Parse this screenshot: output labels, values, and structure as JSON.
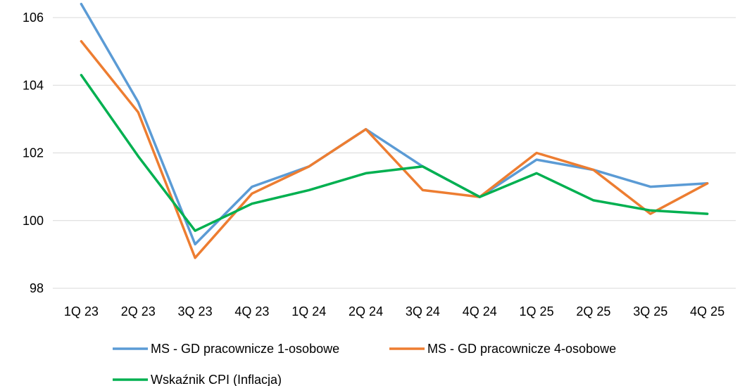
{
  "chart_data": {
    "type": "line",
    "title": "",
    "xlabel": "",
    "ylabel": "",
    "categories": [
      "1Q 23",
      "2Q 23",
      "3Q 23",
      "4Q 23",
      "1Q 24",
      "2Q 24",
      "3Q 24",
      "4Q 24",
      "1Q 25",
      "2Q 25",
      "3Q 25",
      "4Q 25"
    ],
    "ylim": [
      98,
      106
    ],
    "yticks": [
      98,
      100,
      102,
      104,
      106
    ],
    "grid": true,
    "legend_position": "bottom",
    "series": [
      {
        "name": "MS - GD pracownicze 1-osobowe",
        "color": "#5B9BD5",
        "values": [
          106.4,
          103.5,
          99.3,
          101.0,
          101.6,
          102.7,
          101.6,
          100.7,
          101.8,
          101.5,
          101.0,
          101.1
        ]
      },
      {
        "name": "MS - GD pracownicze 4-osobowe",
        "color": "#ED7D31",
        "values": [
          105.3,
          103.2,
          98.9,
          100.8,
          101.6,
          102.7,
          100.9,
          100.7,
          102.0,
          101.5,
          100.2,
          101.1
        ]
      },
      {
        "name": "Wskaźnik CPI (Inflacja)",
        "color": "#00B050",
        "values": [
          104.3,
          101.9,
          99.7,
          100.5,
          100.9,
          101.4,
          101.6,
          100.7,
          101.4,
          100.6,
          100.3,
          100.2
        ]
      }
    ]
  }
}
